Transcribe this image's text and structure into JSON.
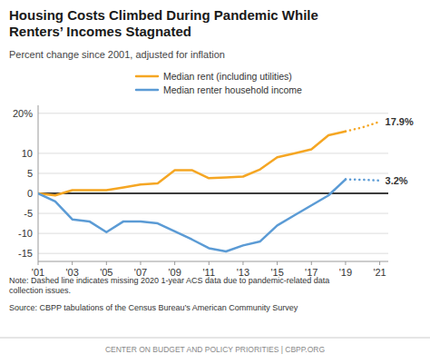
{
  "chart_data": {
    "type": "line",
    "title": "Housing Costs Climbed During Pandemic While\nRenters’ Incomes Stagnated",
    "subtitle": "Percent change since 2001, adjusted for inflation",
    "note": "Note: Dashed line indicates missing 2020 1-year ACS data due to pandemic-related data\ncollection issues.",
    "source": "Source: CBPP tabulations of the Census Bureau’s American Community Survey",
    "footer": "CENTER ON BUDGET AND POLICY PRIORITIES  |  CBPP.ORG",
    "series": [
      {
        "name": "Median rent (including utilities)",
        "color": "#F5A623",
        "line_style": "solid",
        "x": [
          2001,
          2002,
          2003,
          2004,
          2005,
          2006,
          2007,
          2008,
          2009,
          2010,
          2011,
          2012,
          2013,
          2014,
          2015,
          2016,
          2017,
          2018,
          2019
        ],
        "values": [
          0.0,
          -0.5,
          0.8,
          0.8,
          0.8,
          1.5,
          2.2,
          2.5,
          5.8,
          5.8,
          3.8,
          4.0,
          4.2,
          6.0,
          9.0,
          10.0,
          11.0,
          14.5,
          15.5
        ]
      },
      {
        "name": "Median renter household income",
        "color": "#5B9BD5",
        "line_style": "solid",
        "x": [
          2001,
          2002,
          2003,
          2004,
          2005,
          2006,
          2007,
          2008,
          2009,
          2010,
          2011,
          2012,
          2013,
          2014,
          2015,
          2016,
          2017,
          2018,
          2019
        ],
        "values": [
          0.0,
          -2.0,
          -6.5,
          -7.0,
          -9.7,
          -7.0,
          -7.0,
          -7.5,
          -9.5,
          -11.5,
          -13.7,
          -14.5,
          -13.0,
          -12.0,
          -8.0,
          -5.5,
          -3.0,
          -0.5,
          3.5
        ]
      },
      {
        "color": "#F5A623",
        "line_style": "dotted",
        "x": [
          2019,
          2020,
          2021
        ],
        "values": [
          15.5,
          16.5,
          17.9
        ]
      },
      {
        "color": "#5B9BD5",
        "line_style": "dotted",
        "x": [
          2019,
          2020,
          2021
        ],
        "values": [
          3.5,
          3.4,
          3.2
        ]
      }
    ],
    "annotations": [
      {
        "text": "17.9%",
        "x": 2021,
        "y": 17.9
      },
      {
        "text": "3.2%",
        "x": 2021,
        "y": 3.2
      }
    ],
    "reference_lines": [
      {
        "y": 0,
        "color": "#000000"
      }
    ],
    "xlim": [
      2001,
      2021.5
    ],
    "ylim": [
      -17,
      22
    ],
    "xticks": [
      {
        "value": 2001,
        "label": "'01"
      },
      {
        "value": 2003,
        "label": "'03"
      },
      {
        "value": 2005,
        "label": "'05"
      },
      {
        "value": 2007,
        "label": "'07"
      },
      {
        "value": 2009,
        "label": "'09"
      },
      {
        "value": 2011,
        "label": "'11"
      },
      {
        "value": 2013,
        "label": "'13"
      },
      {
        "value": 2015,
        "label": "'15"
      },
      {
        "value": 2017,
        "label": "'17"
      },
      {
        "value": 2019,
        "label": "'19"
      },
      {
        "value": 2021,
        "label": "'21"
      }
    ],
    "yticks": [
      -15,
      -10,
      -5,
      0,
      5,
      10,
      {
        "value": 20,
        "label": "20%"
      }
    ],
    "grid": true,
    "legend": "top"
  }
}
